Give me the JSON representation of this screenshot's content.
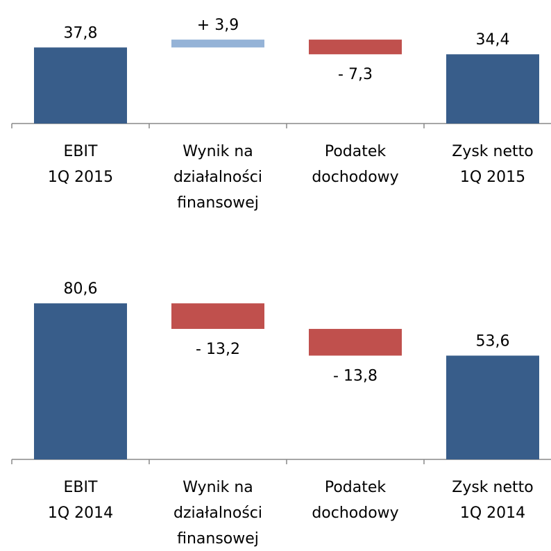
{
  "chart_data": [
    {
      "type": "waterfall",
      "categories": [
        "EBIT\n1Q 2015",
        "Wynik na\ndziałalności\nfinansowej",
        "Podatek\ndochodowy",
        "Zysk netto\n1Q 2015"
      ],
      "measure": [
        "absolute",
        "relative",
        "relative",
        "total"
      ],
      "values": [
        37.8,
        3.9,
        -7.3,
        34.4
      ],
      "value_labels": [
        "37,8",
        "+ 3,9",
        "- 7,3",
        "34,4"
      ],
      "total_color": "#385d8a",
      "increase_color": "#95b3d7",
      "decrease_color": "#c0504d",
      "ylim": [
        0,
        50
      ]
    },
    {
      "type": "waterfall",
      "categories": [
        "EBIT\n1Q 2014",
        "Wynik na\ndziałalności\nfinansowej",
        "Podatek\ndochodowy",
        "Zysk netto\n1Q 2014"
      ],
      "measure": [
        "absolute",
        "relative",
        "relative",
        "total"
      ],
      "values": [
        80.6,
        -13.2,
        -13.8,
        53.6
      ],
      "value_labels": [
        "80,6",
        "- 13,2",
        "- 13,8",
        "53,6"
      ],
      "total_color": "#385d8a",
      "increase_color": "#95b3d7",
      "decrease_color": "#c0504d",
      "ylim": [
        0,
        100
      ]
    }
  ]
}
